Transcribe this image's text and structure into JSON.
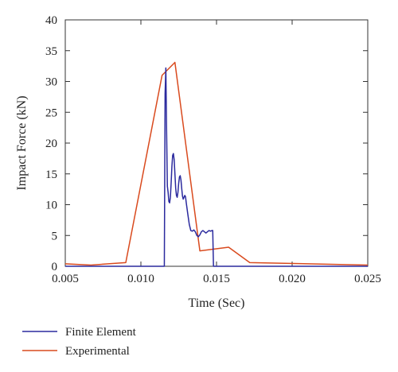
{
  "chart_data": {
    "type": "line",
    "title": "",
    "xlabel": "Time (Sec)",
    "ylabel": "Impact Force (kN)",
    "xlim": [
      0.005,
      0.025
    ],
    "ylim": [
      0,
      40
    ],
    "x_ticks": [
      "0.005",
      "0.010",
      "0.015",
      "0.020",
      "0.025"
    ],
    "y_ticks": [
      "0",
      "5",
      "10",
      "15",
      "20",
      "25",
      "30",
      "35",
      "40"
    ],
    "grid": false,
    "legend_position": "bottom-left, below plot",
    "series": [
      {
        "name": "Finite Element",
        "color": "#2b2a9e",
        "points": [
          [
            0.005,
            0
          ],
          [
            0.0115,
            0
          ],
          [
            0.01155,
            0
          ],
          [
            0.0116,
            28
          ],
          [
            0.01165,
            32.2
          ],
          [
            0.0117,
            22
          ],
          [
            0.01175,
            13
          ],
          [
            0.0118,
            12
          ],
          [
            0.01185,
            10.5
          ],
          [
            0.0119,
            10.3
          ],
          [
            0.01195,
            11.2
          ],
          [
            0.012,
            13.5
          ],
          [
            0.01205,
            16.2
          ],
          [
            0.0121,
            18
          ],
          [
            0.01215,
            18.3
          ],
          [
            0.0122,
            17.3
          ],
          [
            0.01225,
            15
          ],
          [
            0.0123,
            12.7
          ],
          [
            0.01235,
            11.5
          ],
          [
            0.0124,
            11.2
          ],
          [
            0.01245,
            12
          ],
          [
            0.0125,
            13.5
          ],
          [
            0.01255,
            14.5
          ],
          [
            0.0126,
            14.7
          ],
          [
            0.01265,
            14
          ],
          [
            0.0127,
            12.6
          ],
          [
            0.01275,
            11.4
          ],
          [
            0.0128,
            10.9
          ],
          [
            0.01285,
            11.2
          ],
          [
            0.0129,
            11.5
          ],
          [
            0.01295,
            11.3
          ],
          [
            0.013,
            10.3
          ],
          [
            0.0131,
            8.5
          ],
          [
            0.0132,
            6.8
          ],
          [
            0.0133,
            5.8
          ],
          [
            0.0134,
            5.7
          ],
          [
            0.0135,
            5.9
          ],
          [
            0.0136,
            5.6
          ],
          [
            0.0137,
            5.0
          ],
          [
            0.0138,
            4.8
          ],
          [
            0.0139,
            5.1
          ],
          [
            0.014,
            5.6
          ],
          [
            0.0141,
            5.8
          ],
          [
            0.0142,
            5.6
          ],
          [
            0.0143,
            5.4
          ],
          [
            0.0144,
            5.6
          ],
          [
            0.0145,
            5.8
          ],
          [
            0.0146,
            5.7
          ],
          [
            0.0147,
            5.8
          ],
          [
            0.01475,
            5.8
          ],
          [
            0.0148,
            0
          ],
          [
            0.025,
            0
          ]
        ]
      },
      {
        "name": "Experimental",
        "color": "#d94a1e",
        "points": [
          [
            0.005,
            0.4
          ],
          [
            0.0067,
            0.2
          ],
          [
            0.009,
            0.6
          ],
          [
            0.0114,
            31
          ],
          [
            0.01225,
            33.1
          ],
          [
            0.0139,
            2.5
          ],
          [
            0.0158,
            3.1
          ],
          [
            0.0172,
            0.6
          ],
          [
            0.025,
            0.2
          ]
        ]
      }
    ]
  }
}
